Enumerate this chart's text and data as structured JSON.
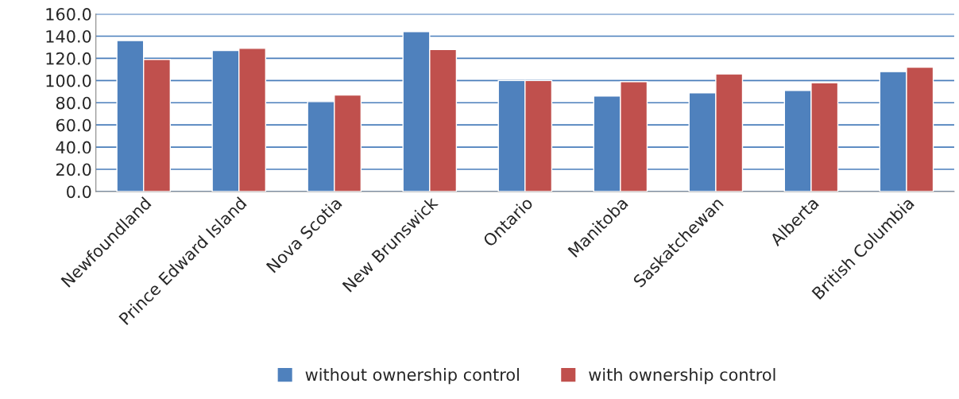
{
  "chart_data": {
    "type": "bar",
    "categories": [
      "Newfoundland",
      "Prince Edward Island",
      "Nova Scotia",
      "New Brunswick",
      "Ontario",
      "Manitoba",
      "Saskatchewan",
      "Alberta",
      "British Columbia"
    ],
    "series": [
      {
        "name": "without ownership control",
        "color": "#4f81bd",
        "values": [
          136,
          127,
          81,
          144,
          100,
          86,
          89,
          91,
          108
        ]
      },
      {
        "name": "with ownership control",
        "color": "#c0504d",
        "values": [
          119,
          129,
          87,
          128,
          100,
          99,
          106,
          98,
          112
        ]
      }
    ],
    "ylim": [
      0,
      160
    ],
    "yticks": [
      {
        "value": 0,
        "label": "0.0"
      },
      {
        "value": 20,
        "label": "20.0"
      },
      {
        "value": 40,
        "label": "40.0"
      },
      {
        "value": 60,
        "label": "60.0"
      },
      {
        "value": 80,
        "label": "80.0"
      },
      {
        "value": 100,
        "label": "100.0"
      },
      {
        "value": 120,
        "label": "120.0"
      },
      {
        "value": 140,
        "label": "140.0"
      },
      {
        "value": 160,
        "label": "160.0"
      }
    ],
    "grid": "y",
    "legend": "bottom"
  }
}
